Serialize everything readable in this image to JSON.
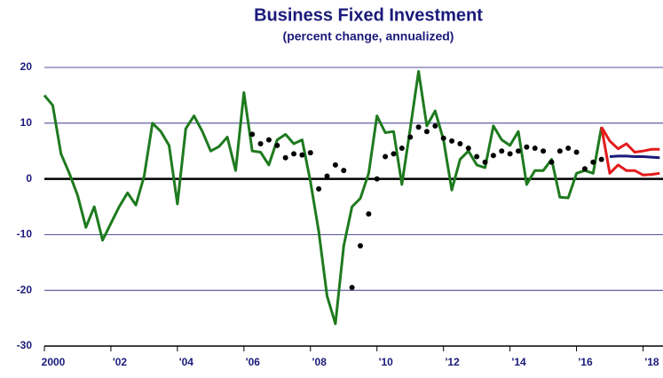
{
  "chart_data": {
    "type": "line",
    "title": "Business Fixed Investment",
    "subtitle": "(percent change, annualized)",
    "xlim": [
      2000,
      2018.6
    ],
    "xticks": [
      {
        "value": 2000,
        "label": "2000"
      },
      {
        "value": 2002,
        "label": "'02"
      },
      {
        "value": 2004,
        "label": "'04"
      },
      {
        "value": 2006,
        "label": "'06"
      },
      {
        "value": 2008,
        "label": "'08"
      },
      {
        "value": 2010,
        "label": "'10"
      },
      {
        "value": 2012,
        "label": "'12"
      },
      {
        "value": 2014,
        "label": "'14"
      },
      {
        "value": 2016,
        "label": "'16"
      },
      {
        "value": 2018,
        "label": "'18"
      }
    ],
    "ylim": [
      -30,
      20
    ],
    "yticks": [
      20,
      10,
      0,
      -10,
      -20,
      -30
    ],
    "grid": true,
    "zero_line": true,
    "series": [
      {
        "style": "line",
        "color": "#1e7a1e",
        "x": [
          2000,
          2000.25,
          2000.5,
          2000.75,
          2001,
          2001.25,
          2001.5,
          2001.75,
          2002,
          2002.25,
          2002.5,
          2002.75,
          2003,
          2003.25,
          2003.5,
          2003.75,
          2004,
          2004.25,
          2004.5,
          2004.75,
          2005,
          2005.25,
          2005.5,
          2005.75,
          2006,
          2006.25,
          2006.5,
          2006.75,
          2007,
          2007.25,
          2007.5,
          2007.75,
          2008,
          2008.25,
          2008.5,
          2008.75,
          2009,
          2009.25,
          2009.5,
          2009.75,
          2010,
          2010.25,
          2010.5,
          2010.75,
          2011,
          2011.25,
          2011.5,
          2011.75,
          2012,
          2012.25,
          2012.5,
          2012.75,
          2013,
          2013.25,
          2013.5,
          2013.75,
          2014,
          2014.25,
          2014.5,
          2014.75,
          2015,
          2015.25,
          2015.5,
          2015.75,
          2016,
          2016.25,
          2016.5,
          2016.75
        ],
        "values": [
          15,
          13.2,
          4.5,
          1,
          -3,
          -8.7,
          -5,
          -11,
          -8,
          -5,
          -2.5,
          -4.7,
          0.5,
          10,
          8.5,
          6,
          -4.5,
          9,
          11.3,
          8.5,
          5,
          5.8,
          7.5,
          1.5,
          15.5,
          5,
          4.8,
          2.5,
          7,
          8,
          6.3,
          7,
          -0.5,
          -9.5,
          -21,
          -26,
          -12,
          -5,
          -3.5,
          1,
          11.3,
          8.3,
          8.5,
          -1,
          9,
          19.3,
          9.5,
          12.2,
          7,
          -2,
          3.5,
          5,
          2.5,
          2,
          9.5,
          7,
          6,
          8.5,
          -1,
          1.5,
          1.5,
          3.5,
          -3.3,
          -3.4,
          1,
          1.5,
          1,
          9.3
        ]
      },
      {
        "style": "dots",
        "color": "#000000",
        "x": [
          2006.25,
          2006.5,
          2006.75,
          2007,
          2007.25,
          2007.5,
          2007.75,
          2008,
          2008.25,
          2008.5,
          2008.75,
          2009,
          2009.25,
          2009.5,
          2009.75,
          2010,
          2010.25,
          2010.5,
          2010.75,
          2011,
          2011.25,
          2011.5,
          2011.75,
          2012,
          2012.25,
          2012.5,
          2012.75,
          2013,
          2013.25,
          2013.5,
          2013.75,
          2014,
          2014.25,
          2014.5,
          2014.75,
          2015,
          2015.25,
          2015.5,
          2015.75,
          2016,
          2016.25,
          2016.5,
          2016.75
        ],
        "values": [
          8,
          6.3,
          7,
          6,
          3.8,
          4.5,
          4.3,
          4.7,
          -1.8,
          0.5,
          2.5,
          1.5,
          -19.5,
          -12,
          -6.3,
          0,
          4,
          4.5,
          5.5,
          7.5,
          9.3,
          8.5,
          9.5,
          7.3,
          6.8,
          6.3,
          5.5,
          4,
          3,
          4.2,
          5,
          4.5,
          5,
          5.7,
          5.5,
          5,
          3,
          5,
          5.5,
          4.8,
          1.8,
          3,
          3.5
        ]
      },
      {
        "style": "line",
        "color": "#e41a1c",
        "x": [
          2016.75,
          2017,
          2017.25,
          2017.5,
          2017.75,
          2018,
          2018.25,
          2018.5
        ],
        "values": [
          9.3,
          6.8,
          5.4,
          6.3,
          4.8,
          5,
          5.3,
          5.3
        ]
      },
      {
        "style": "line",
        "color": "#e41a1c",
        "x": [
          2016.75,
          2017,
          2017.25,
          2017.5,
          2017.75,
          2018,
          2018.25,
          2018.5
        ],
        "values": [
          9.3,
          1,
          2.5,
          1.5,
          1.5,
          0.7,
          0.8,
          1
        ]
      },
      {
        "style": "line",
        "color": "#1a1a7a",
        "x": [
          2017,
          2017.25,
          2017.5,
          2017.75,
          2018,
          2018.25,
          2018.5
        ],
        "values": [
          4,
          4.1,
          4.1,
          4,
          4,
          3.9,
          3.8
        ]
      }
    ]
  }
}
